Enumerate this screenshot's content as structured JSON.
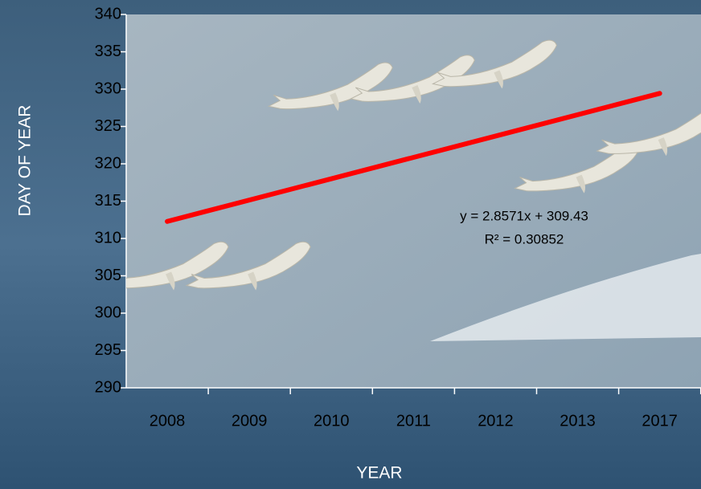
{
  "chart_data": {
    "type": "scatter",
    "x_label": "YEAR",
    "y_label": "DAY OF YEAR",
    "categories": [
      "2008",
      "2009",
      "2010",
      "2011",
      "2012",
      "2013",
      "2017"
    ],
    "values": [
      305,
      305,
      329,
      330,
      332,
      318,
      323
    ],
    "ylim": [
      290,
      340
    ],
    "yticks": [
      290,
      295,
      300,
      305,
      310,
      315,
      320,
      325,
      330,
      335,
      340
    ],
    "marker_color": "#e8e6dc",
    "trendline": {
      "slope": 2.8571,
      "intercept": 309.43,
      "color": "#ff0000",
      "equation": "y = 2.8571x + 309.43",
      "r2": "R² = 0.30852"
    }
  }
}
